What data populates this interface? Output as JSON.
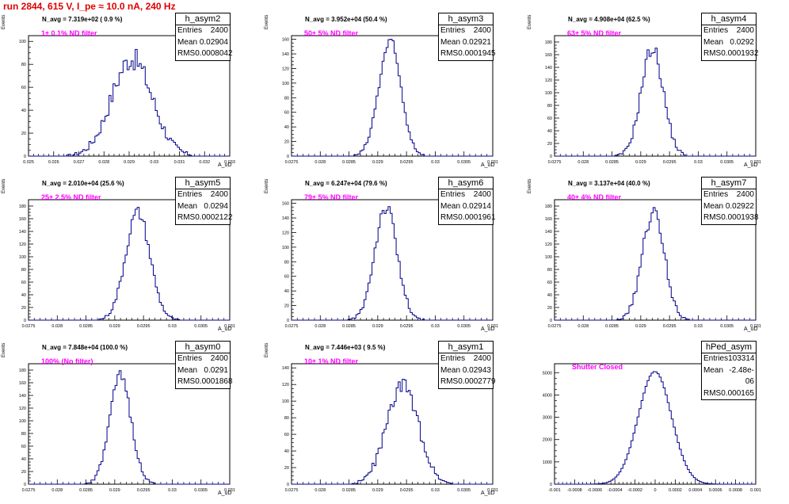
{
  "header": {
    "title": "run 2844,   615 V, I_pe ≈ 10.0 nA, 240 Hz"
  },
  "colors": {
    "histogram": "#00008b",
    "header": "#e00000",
    "filter_label": "#ff00ff"
  },
  "chart_data": [
    {
      "type": "histogram",
      "name": "h_asym2",
      "navg": "N_avg = 7.319e+02 ( 0.9 %)",
      "filter": "1± 0.1% ND filter",
      "entries": "2400",
      "mean": "0.02904",
      "rms": "0.0008042",
      "ylabel": "Events",
      "xlabel": "A_uD",
      "xlim": [
        0.025,
        0.033
      ],
      "ylim": [
        0,
        105
      ],
      "xticks": [
        "0.025",
        "0.026",
        "0.027",
        "0.028",
        "0.029",
        "0.03",
        "0.031",
        "0.032",
        "0.033"
      ],
      "yticks": [
        "0",
        "20",
        "40",
        "60",
        "80",
        "100"
      ],
      "gauss": {
        "mean": 0.02904,
        "sigma": 0.0008042,
        "peak": 85,
        "shift": 7e-05,
        "noise": 10
      }
    },
    {
      "type": "histogram",
      "name": "h_asym3",
      "navg": "N_avg = 3.952e+04 (50.4 %)",
      "filter": "50± 5% ND filter",
      "entries": "2400",
      "mean": "0.02921",
      "rms": "0.0001945",
      "ylabel": "Events",
      "xlabel": "A_uD",
      "xlim": [
        0.0275,
        0.031
      ],
      "ylim": [
        0,
        165
      ],
      "xticks": [
        "0.0275",
        "0.028",
        "0.0285",
        "0.029",
        "0.0295",
        "0.03",
        "0.0305",
        "0.031"
      ],
      "yticks": [
        "0",
        "20",
        "40",
        "60",
        "80",
        "100",
        "120",
        "140",
        "160"
      ],
      "gauss": {
        "mean": 0.02921,
        "sigma": 0.0001945,
        "peak": 155,
        "shift": 0,
        "noise": 10
      }
    },
    {
      "type": "histogram",
      "name": "h_asym4",
      "navg": "N_avg = 4.908e+04 (62.5 %)",
      "filter": "63± 5% ND filter",
      "entries": "2400",
      "mean": "0.0292",
      "rms": "0.0001932",
      "ylabel": "Events",
      "xlabel": "A_uD",
      "xlim": [
        0.0275,
        0.031
      ],
      "ylim": [
        0,
        190
      ],
      "xticks": [
        "0.0275",
        "0.028",
        "0.0285",
        "0.029",
        "0.0295",
        "0.03",
        "0.0305",
        "0.031"
      ],
      "yticks": [
        "0",
        "20",
        "40",
        "60",
        "80",
        "100",
        "120",
        "140",
        "160",
        "180"
      ],
      "gauss": {
        "mean": 0.0292,
        "sigma": 0.0001932,
        "peak": 170,
        "shift": 0,
        "noise": 12
      }
    },
    {
      "type": "histogram",
      "name": "h_asym5",
      "navg": "N_avg = 2.010e+04 (25.6 %)",
      "filter": "25± 2.5% ND filter",
      "entries": "2400",
      "mean": "0.0294",
      "rms": "0.0002122",
      "ylabel": "Events",
      "xlabel": "A_uD",
      "xlim": [
        0.0275,
        0.031
      ],
      "ylim": [
        0,
        190
      ],
      "xticks": [
        "0.0275",
        "0.028",
        "0.0285",
        "0.029",
        "0.0295",
        "0.03",
        "0.0305",
        "0.031"
      ],
      "yticks": [
        "0",
        "20",
        "40",
        "60",
        "80",
        "100",
        "120",
        "140",
        "160",
        "180"
      ],
      "gauss": {
        "mean": 0.0294,
        "sigma": 0.0002122,
        "peak": 170,
        "shift": 0,
        "noise": 10
      }
    },
    {
      "type": "histogram",
      "name": "h_asym6",
      "navg": "N_avg = 6.247e+04 (79.6 %)",
      "filter": "79± 5% ND filter",
      "entries": "2400",
      "mean": "0.02914",
      "rms": "0.0001961",
      "ylabel": "Events",
      "xlabel": "A_uD",
      "xlim": [
        0.0275,
        0.031
      ],
      "ylim": [
        0,
        165
      ],
      "xticks": [
        "0.0275",
        "0.028",
        "0.0285",
        "0.029",
        "0.0295",
        "0.03",
        "0.0305",
        "0.031"
      ],
      "yticks": [
        "0",
        "20",
        "40",
        "60",
        "80",
        "100",
        "120",
        "140",
        "160"
      ],
      "gauss": {
        "mean": 0.02914,
        "sigma": 0.0001961,
        "peak": 155,
        "shift": 0,
        "noise": 10
      }
    },
    {
      "type": "histogram",
      "name": "h_asym7",
      "navg": "N_avg = 3.137e+04 (40.0 %)",
      "filter": "40± 4% ND filter",
      "entries": "2400",
      "mean": "0.02922",
      "rms": "0.0001938",
      "ylabel": "Events",
      "xlabel": "A_uD",
      "xlim": [
        0.0275,
        0.031
      ],
      "ylim": [
        0,
        190
      ],
      "xticks": [
        "0.0275",
        "0.028",
        "0.0285",
        "0.029",
        "0.0295",
        "0.03",
        "0.0305",
        "0.031"
      ],
      "yticks": [
        "0",
        "20",
        "40",
        "60",
        "80",
        "100",
        "120",
        "140",
        "160",
        "180"
      ],
      "gauss": {
        "mean": 0.02922,
        "sigma": 0.0001938,
        "peak": 170,
        "shift": 0,
        "noise": 12
      }
    },
    {
      "type": "histogram",
      "name": "h_asym0",
      "navg": "N_avg = 7.848e+04 (100.0 %)",
      "filter": "100% (No filter)",
      "entries": "2400",
      "mean": "0.0291",
      "rms": "0.0001868",
      "ylabel": "Events",
      "xlabel": "A_uD",
      "xlim": [
        0.0275,
        0.031
      ],
      "ylim": [
        0,
        190
      ],
      "xticks": [
        "0.0275",
        "0.028",
        "0.0285",
        "0.029",
        "0.0295",
        "0.03",
        "0.0305",
        "0.031"
      ],
      "yticks": [
        "0",
        "20",
        "40",
        "60",
        "80",
        "100",
        "120",
        "140",
        "160",
        "180"
      ],
      "gauss": {
        "mean": 0.0291,
        "sigma": 0.0001868,
        "peak": 170,
        "shift": 0,
        "noise": 10
      }
    },
    {
      "type": "histogram",
      "name": "h_asym1",
      "navg": "N_avg = 7.446e+03 ( 9.5 %)",
      "filter": "10± 1% ND filter",
      "entries": "2400",
      "mean": "0.02943",
      "rms": "0.0002779",
      "ylabel": "Events",
      "xlabel": "A_uD",
      "xlim": [
        0.0275,
        0.031
      ],
      "ylim": [
        0,
        145
      ],
      "xticks": [
        "0.0275",
        "0.028",
        "0.0285",
        "0.029",
        "0.0295",
        "0.03",
        "0.0305",
        "0.031"
      ],
      "yticks": [
        "0",
        "20",
        "40",
        "60",
        "80",
        "100",
        "120",
        "140"
      ],
      "gauss": {
        "mean": 0.02943,
        "sigma": 0.0002779,
        "peak": 118,
        "shift": 0,
        "noise": 10
      }
    },
    {
      "type": "histogram",
      "name": "hPed_asym",
      "navg": "",
      "filter": "Shutter Closed",
      "entries": "103314",
      "mean": "-2.48e-06",
      "rms": "0.000165",
      "ylabel": "",
      "xlabel": "",
      "xlim": [
        -0.001,
        0.001
      ],
      "ylim": [
        0,
        5400
      ],
      "xticks": [
        "-0.001",
        "-0.0008",
        "-0.0006",
        "-0.0004",
        "-0.0002",
        "0",
        "0.0002",
        "0.0004",
        "0.0006",
        "0.0008",
        "0.001"
      ],
      "yticks": [
        "0",
        "1000",
        "2000",
        "3000",
        "4000",
        "5000"
      ],
      "gauss": {
        "mean": -2.5e-06,
        "sigma": 0.000165,
        "peak": 5050,
        "shift": 0,
        "noise": 1
      }
    }
  ]
}
